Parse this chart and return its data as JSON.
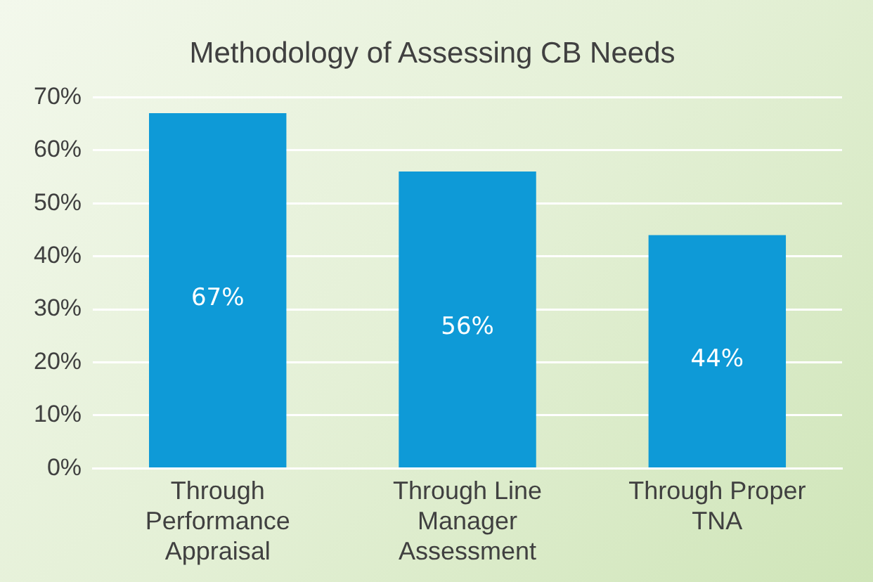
{
  "chart_data": {
    "type": "bar",
    "title": "Methodology of Assessing CB Needs",
    "categories": [
      "Through Performance Appraisal",
      "Through Line Manager Assessment",
      "Through Proper TNA"
    ],
    "values": [
      67,
      56,
      44
    ],
    "color": "#0e9ad7",
    "value_labels": [
      "67%",
      "56%",
      "44%"
    ],
    "ylim": [
      0,
      70
    ],
    "yticks": [
      {
        "value": 0,
        "label": "0%"
      },
      {
        "value": 10,
        "label": "10%"
      },
      {
        "value": 20,
        "label": "20%"
      },
      {
        "value": 30,
        "label": "30%"
      },
      {
        "value": 40,
        "label": "40%"
      },
      {
        "value": 50,
        "label": "50%"
      },
      {
        "value": 60,
        "label": "60%"
      },
      {
        "value": 70,
        "label": "70%"
      }
    ],
    "grid": "y",
    "legend": false
  }
}
